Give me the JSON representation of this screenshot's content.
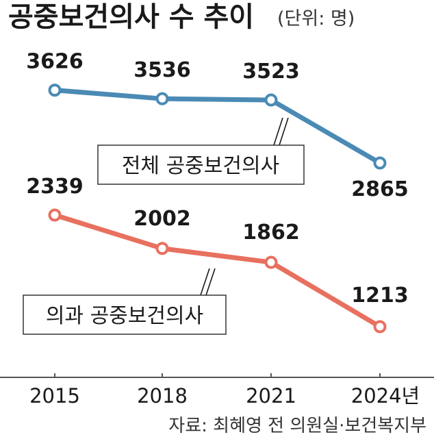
{
  "title": "공중보건의사 수 추이",
  "unit_note": "(단위: 명)",
  "source": "자료: 최혜영 전 의원실·보건복지부",
  "chart_data": {
    "type": "line",
    "categories": [
      "2015",
      "2018",
      "2021",
      "2024년"
    ],
    "series": [
      {
        "name": "전체 공중보건의사",
        "values": [
          3626,
          3536,
          3523,
          2865
        ],
        "color": "#4a8ab5"
      },
      {
        "name": "의과 공중보건의사",
        "values": [
          2339,
          2002,
          1862,
          1213
        ],
        "color": "#e8705f"
      }
    ],
    "grid": false,
    "legend": "inline-callout"
  }
}
